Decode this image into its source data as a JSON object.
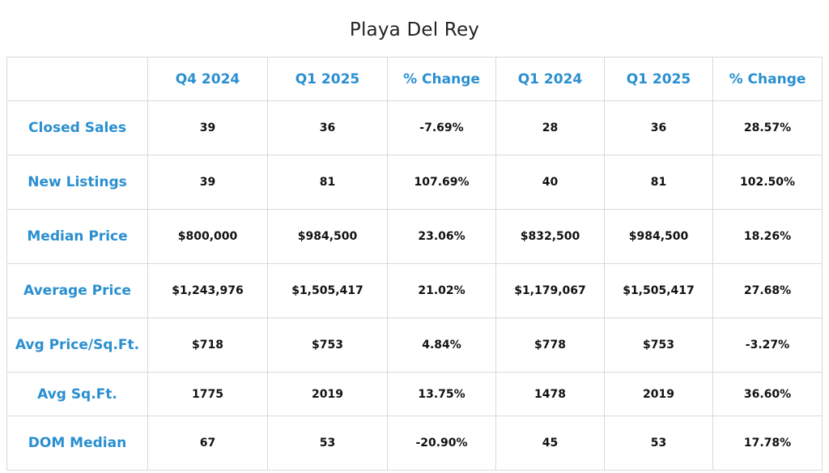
{
  "title": "Playa Del Rey",
  "chart_data": {
    "type": "table",
    "title": "Playa Del Rey",
    "columns": [
      "",
      "Q4 2024",
      "Q1 2025",
      "% Change",
      "Q1 2024",
      "Q1 2025",
      "% Change"
    ],
    "rows": [
      {
        "label": "Closed Sales",
        "values": [
          "39",
          "36",
          "-7.69%",
          "28",
          "36",
          "28.57%"
        ]
      },
      {
        "label": "New Listings",
        "values": [
          "39",
          "81",
          "107.69%",
          "40",
          "81",
          "102.50%"
        ]
      },
      {
        "label": "Median Price",
        "values": [
          "$800,000",
          "$984,500",
          "23.06%",
          "$832,500",
          "$984,500",
          "18.26%"
        ]
      },
      {
        "label": "Average Price",
        "values": [
          "$1,243,976",
          "$1,505,417",
          "21.02%",
          "$1,179,067",
          "$1,505,417",
          "27.68%"
        ]
      },
      {
        "label": "Avg Price/Sq.Ft.",
        "values": [
          "$718",
          "$753",
          "4.84%",
          "$778",
          "$753",
          "-3.27%"
        ]
      },
      {
        "label": "Avg Sq.Ft.",
        "values": [
          "1775",
          "2019",
          "13.75%",
          "1478",
          "2019",
          "36.60%"
        ]
      },
      {
        "label": "DOM Median",
        "values": [
          "67",
          "53",
          "-20.90%",
          "45",
          "53",
          "17.78%"
        ]
      }
    ]
  },
  "colors": {
    "header_text": "#2a8fd0",
    "value_text": "#111111",
    "grid": "#d9d9d9"
  }
}
